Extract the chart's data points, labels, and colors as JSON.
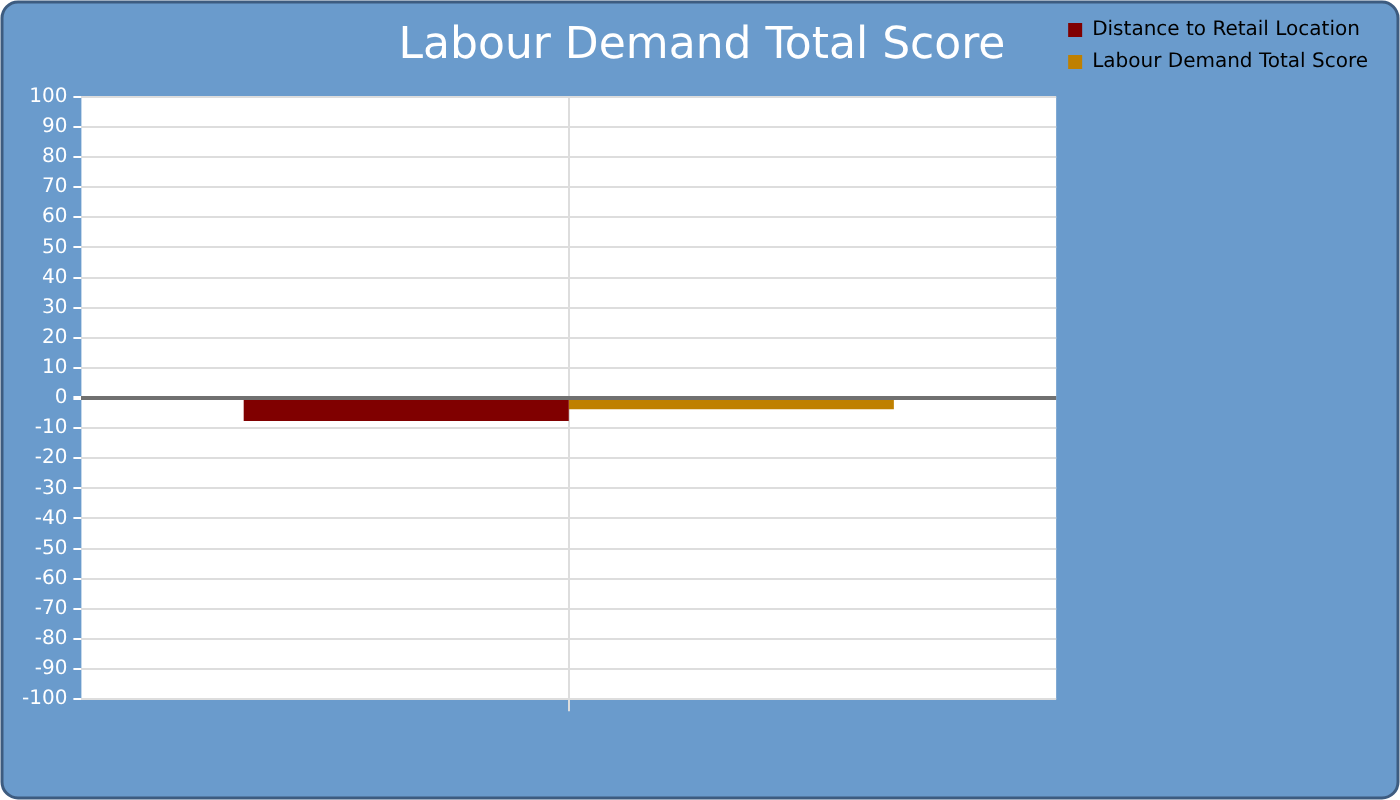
{
  "chart_data": {
    "type": "bar",
    "title": "Labour Demand Total Score",
    "categories": [
      null
    ],
    "series": [
      {
        "name": "Distance to Retail Location",
        "color": "#800000",
        "values": [
          -7.6
        ]
      },
      {
        "name": "Labour Demand Total Score",
        "color": "#bf8000",
        "values": [
          -3.7
        ]
      }
    ],
    "ylim": [
      -100,
      100
    ],
    "yticks": [
      -100,
      -90,
      -80,
      -70,
      -60,
      -50,
      -40,
      -30,
      -20,
      -10,
      0,
      10,
      20,
      30,
      40,
      50,
      60,
      70,
      80,
      90,
      100
    ],
    "grid": true,
    "legend": "top right"
  }
}
